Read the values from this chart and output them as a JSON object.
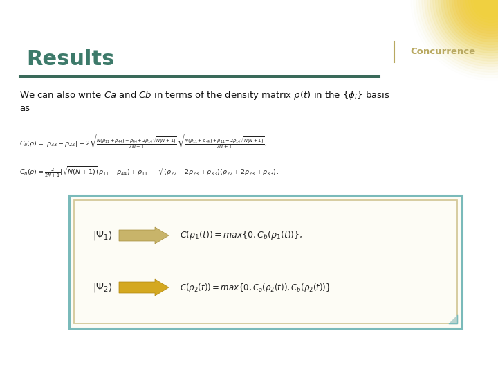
{
  "background_color": "#ffffff",
  "border_color": "#4a8a7a",
  "title": "Results",
  "title_color": "#3d7a6a",
  "title_fontsize": 22,
  "concurrence_label": "Concurrence",
  "concurrence_color": "#b8a860",
  "separator_color": "#3a6a5a",
  "box_border_outer": "#7ababa",
  "box_border_inner": "#d4c89a",
  "box_bg": "#fdfcf5",
  "arrow_color_1": "#c8b870",
  "arrow_color_2": "#d4a820",
  "gradient_color_inner": "#f5e050",
  "gradient_color_outer": "#ffffff"
}
